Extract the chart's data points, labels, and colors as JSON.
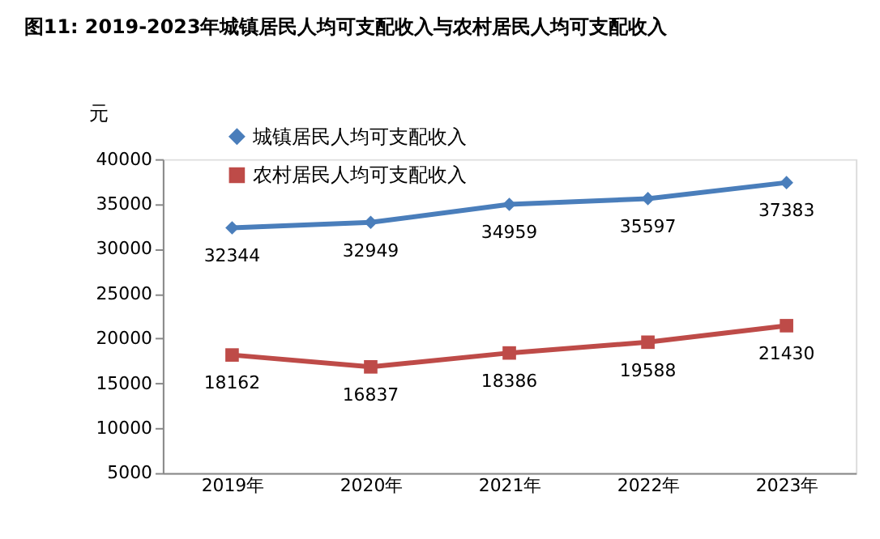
{
  "chart_data": {
    "type": "line",
    "title": "图11: 2019-2023年城镇居民人均可支配收入与农村居民人均可支配收入",
    "ylabel": "元",
    "categories": [
      "2019年",
      "2020年",
      "2021年",
      "2022年",
      "2023年"
    ],
    "series": [
      {
        "name": "城镇居民人均可支配收入",
        "color": "#4a7ebb",
        "marker": "diamond",
        "values": [
          32344,
          32949,
          34959,
          35597,
          37383
        ]
      },
      {
        "name": "农村居民人均可支配收入",
        "color": "#be4b48",
        "marker": "square",
        "values": [
          18162,
          16837,
          18386,
          19588,
          21430
        ]
      }
    ],
    "ylim": [
      5000,
      40000
    ],
    "yticks": [
      5000,
      10000,
      15000,
      20000,
      25000,
      30000,
      35000,
      40000
    ],
    "grid": false,
    "legend": "top left",
    "data_labels": true,
    "line_style": "solid"
  }
}
